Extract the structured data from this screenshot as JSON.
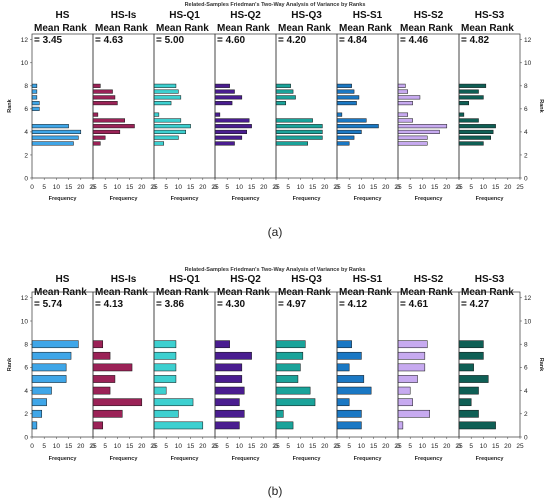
{
  "chart_data": [
    {
      "type": "bar",
      "orientation": "horizontal-histogram",
      "title": "Related-Samples Friedman's Two-Way Analysis of Variance by Ranks",
      "caption": "(a)",
      "ylabel": "Rank",
      "xlabel": "Frequency",
      "yticks": [
        "0",
        "2",
        "4",
        "6",
        "8",
        "10",
        "12"
      ],
      "xticks": [
        "0",
        "5",
        "10",
        "15",
        "20",
        "25"
      ],
      "ylim": [
        0,
        12.5
      ],
      "xlim": [
        0,
        25
      ],
      "rank_bins": [
        0.5,
        1,
        1.5,
        2,
        2.5,
        3,
        3.5,
        4,
        4.5,
        5,
        5.5,
        6,
        6.5,
        7,
        7.5,
        8
      ],
      "groups": [
        {
          "name": "HS",
          "mean_label": "Mean Rank",
          "mean_value": "= 3.45",
          "color": "#3fa6e8",
          "freq": [
            0,
            0,
            0,
            0,
            0,
            17,
            19,
            20,
            15,
            0,
            0,
            3,
            3,
            2,
            2,
            2
          ]
        },
        {
          "name": "HS-Is",
          "mean_label": "Mean Rank",
          "mean_value": "= 4.63",
          "color": "#9b2257",
          "freq": [
            0,
            0,
            0,
            0,
            0,
            3,
            5,
            11,
            17,
            13,
            2,
            0,
            10,
            9,
            8,
            3
          ]
        },
        {
          "name": "HS-Q1",
          "mean_label": "Mean Rank",
          "mean_value": "= 5.00",
          "color": "#3dd0d0",
          "freq": [
            0,
            0,
            0,
            0,
            0,
            4,
            10,
            13,
            15,
            11,
            2,
            0,
            7,
            11,
            10,
            9
          ]
        },
        {
          "name": "HS-Q2",
          "mean_label": "Mean Rank",
          "mean_value": "= 4.60",
          "color": "#4a1d90",
          "freq": [
            0,
            0,
            0,
            0,
            0,
            8,
            11,
            13,
            15,
            14,
            2,
            0,
            7,
            11,
            8,
            6
          ]
        },
        {
          "name": "HS-Q3",
          "mean_label": "Mean Rank",
          "mean_value": "= 4.20",
          "color": "#1aa39a",
          "freq": [
            0,
            0,
            0,
            0,
            0,
            13,
            19,
            19,
            19,
            15,
            0,
            0,
            4,
            8,
            7,
            6
          ]
        },
        {
          "name": "HS-S1",
          "mean_label": "Mean Rank",
          "mean_value": "= 4.84",
          "color": "#1a78c4",
          "freq": [
            0,
            0,
            0,
            0,
            0,
            5,
            7,
            10,
            17,
            12,
            2,
            0,
            8,
            9,
            7,
            6
          ]
        },
        {
          "name": "HS-S2",
          "mean_label": "Mean Rank",
          "mean_value": "= 4.46",
          "color": "#c7aaf0",
          "freq": [
            0,
            0,
            0,
            0,
            0,
            12,
            12,
            17,
            20,
            6,
            4,
            0,
            6,
            9,
            4,
            3
          ]
        },
        {
          "name": "HS-S3",
          "mean_label": "Mean Rank",
          "mean_value": "= 4.82",
          "color": "#0f5f55",
          "freq": [
            0,
            0,
            0,
            0,
            0,
            10,
            13,
            14,
            15,
            8,
            2,
            0,
            4,
            10,
            8,
            11
          ]
        }
      ]
    },
    {
      "type": "bar",
      "orientation": "horizontal-histogram",
      "title": "Related-Samples Friedman's Two-Way Analysis of Variance by Ranks",
      "caption": "(b)",
      "ylabel": "Rank",
      "xlabel": "Frequency",
      "yticks": [
        "0",
        "2",
        "4",
        "6",
        "8",
        "10",
        "12"
      ],
      "xticks": [
        "0",
        "5",
        "10",
        "15",
        "20",
        "25"
      ],
      "ylim": [
        0,
        12.5
      ],
      "xlim": [
        0,
        25
      ],
      "rank_bins": [
        1,
        2,
        3,
        4,
        5,
        6,
        7,
        8
      ],
      "groups": [
        {
          "name": "HS",
          "mean_label": "Mean Rank",
          "mean_value": "= 5.74",
          "color": "#3fa6e8",
          "freq": [
            2,
            4,
            6,
            8,
            14,
            14,
            16,
            19
          ]
        },
        {
          "name": "HS-Is",
          "mean_label": "Mean Rank",
          "mean_value": "= 4.13",
          "color": "#9b2257",
          "freq": [
            4,
            12,
            20,
            7,
            9,
            16,
            7,
            4
          ]
        },
        {
          "name": "HS-Q1",
          "mean_label": "Mean Rank",
          "mean_value": "= 3.86",
          "color": "#3dd0d0",
          "freq": [
            20,
            10,
            16,
            5,
            9,
            9,
            9,
            9
          ]
        },
        {
          "name": "HS-Q2",
          "mean_label": "Mean Rank",
          "mean_value": "= 4.30",
          "color": "#4a1d90",
          "freq": [
            10,
            12,
            10,
            12,
            11,
            11,
            15,
            6
          ]
        },
        {
          "name": "HS-Q3",
          "mean_label": "Mean Rank",
          "mean_value": "= 4.97",
          "color": "#1aa39a",
          "freq": [
            7,
            3,
            16,
            14,
            9,
            10,
            11,
            12
          ]
        },
        {
          "name": "HS-S1",
          "mean_label": "Mean Rank",
          "mean_value": "= 4.12",
          "color": "#1a78c4",
          "freq": [
            10,
            10,
            5,
            14,
            11,
            5,
            10,
            6
          ]
        },
        {
          "name": "HS-S2",
          "mean_label": "Mean Rank",
          "mean_value": "= 4.61",
          "color": "#c7aaf0",
          "freq": [
            2,
            13,
            6,
            5,
            8,
            11,
            11,
            12
          ]
        },
        {
          "name": "HS-S3",
          "mean_label": "Mean Rank",
          "mean_value": "= 4.27",
          "color": "#0f5f55",
          "freq": [
            15,
            8,
            5,
            8,
            12,
            6,
            10,
            10
          ]
        }
      ]
    }
  ]
}
